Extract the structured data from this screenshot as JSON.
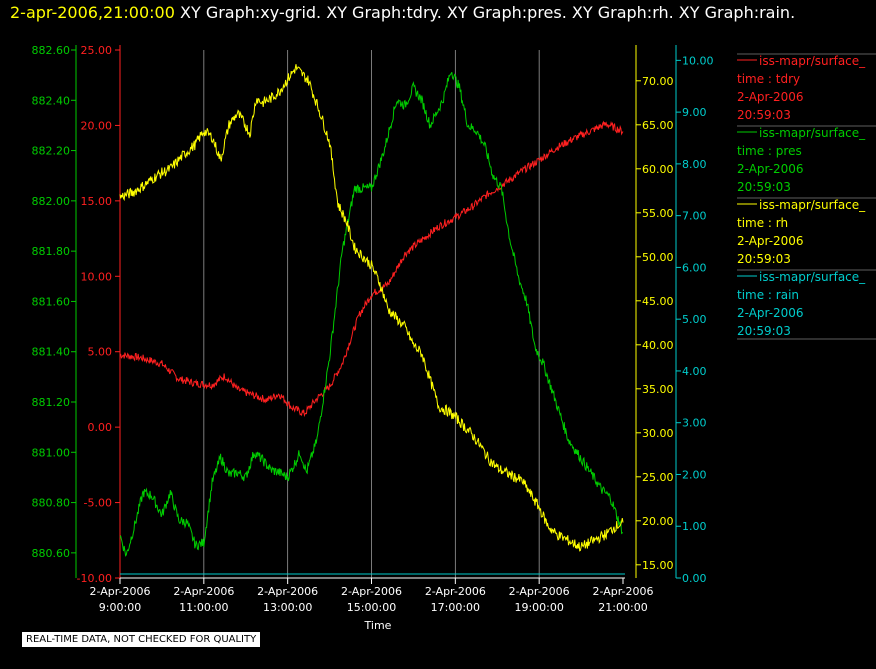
{
  "header": {
    "timestamp": "2-apr-2006,21:00:00",
    "graphs": "XY Graph:xy-grid.  XY Graph:tdry.  XY Graph:pres.  XY Graph:rh.  XY Graph:rain."
  },
  "notice": "REAL-TIME DATA, NOT CHECKED FOR QUALITY",
  "chart_data": {
    "type": "line",
    "xlabel": "Time",
    "x_ticks": [
      {
        "time": "09:00",
        "line1": "2-Apr-2006",
        "line2": "9:00:00"
      },
      {
        "time": "11:00",
        "line1": "2-Apr-2006",
        "line2": "11:00:00"
      },
      {
        "time": "13:00",
        "line1": "2-Apr-2006",
        "line2": "13:00:00"
      },
      {
        "time": "15:00",
        "line1": "2-Apr-2006",
        "line2": "15:00:00"
      },
      {
        "time": "17:00",
        "line1": "2-Apr-2006",
        "line2": "17:00:00"
      },
      {
        "time": "19:00",
        "line1": "2-Apr-2006",
        "line2": "19:00:00"
      },
      {
        "time": "21:00",
        "line1": "2-Apr-2006",
        "line2": "21:00:00"
      }
    ],
    "grid": "vertical",
    "legend_position": "right",
    "axes": [
      {
        "id": "pres",
        "color": "#00cc00",
        "side": "left-outer",
        "range": [
          880.5,
          882.6
        ],
        "ticks": [
          "880.60",
          "880.80",
          "881.00",
          "881.20",
          "881.40",
          "881.60",
          "881.80",
          "882.00",
          "882.20",
          "882.40",
          "882.60"
        ]
      },
      {
        "id": "tdry",
        "color": "#ff2020",
        "side": "left-inner",
        "range": [
          -10,
          25
        ],
        "ticks": [
          "-10.00",
          "-5.00",
          "0.00",
          "5.00",
          "10.00",
          "15.00",
          "20.00",
          "25.00"
        ]
      },
      {
        "id": "rh",
        "color": "#ffff00",
        "side": "right-inner",
        "range": [
          13.5,
          73.5
        ],
        "ticks": [
          "15.00",
          "20.00",
          "25.00",
          "30.00",
          "35.00",
          "40.00",
          "45.00",
          "50.00",
          "55.00",
          "60.00",
          "65.00",
          "70.00"
        ]
      },
      {
        "id": "rain",
        "color": "#00cccc",
        "side": "right-outer",
        "range": [
          0,
          10.2
        ],
        "ticks": [
          "0.00",
          "1.00",
          "2.00",
          "3.00",
          "4.00",
          "5.00",
          "6.00",
          "7.00",
          "8.00",
          "9.00",
          "10.00"
        ]
      }
    ],
    "legend": [
      {
        "name": "iss-mapr/surface_",
        "var": "time : tdry",
        "date": "2-Apr-2006",
        "time": "20:59:03",
        "color": "#ff2020"
      },
      {
        "name": "iss-mapr/surface_",
        "var": "time : pres",
        "date": "2-Apr-2006",
        "time": "20:59:03",
        "color": "#00cc00"
      },
      {
        "name": "iss-mapr/surface_",
        "var": "time : rh",
        "date": "2-Apr-2006",
        "time": "20:59:03",
        "color": "#ffff00"
      },
      {
        "name": "iss-mapr/surface_",
        "var": "time : rain",
        "date": "2-Apr-2006",
        "time": "20:59:03",
        "color": "#00cccc"
      }
    ],
    "series": [
      {
        "axis": "tdry",
        "points": [
          [
            9.0,
            4.8
          ],
          [
            9.5,
            4.6
          ],
          [
            10.0,
            4.2
          ],
          [
            10.4,
            3.2
          ],
          [
            10.8,
            2.9
          ],
          [
            11.2,
            2.8
          ],
          [
            11.5,
            3.4
          ],
          [
            11.8,
            2.5
          ],
          [
            12.1,
            2.2
          ],
          [
            12.5,
            1.8
          ],
          [
            12.8,
            2.2
          ],
          [
            13.1,
            1.3
          ],
          [
            13.4,
            0.9
          ],
          [
            13.7,
            1.9
          ],
          [
            14.0,
            2.7
          ],
          [
            14.3,
            4.2
          ],
          [
            14.7,
            7.4
          ],
          [
            15.0,
            8.8
          ],
          [
            15.4,
            9.5
          ],
          [
            15.8,
            11.5
          ],
          [
            16.2,
            12.4
          ],
          [
            16.6,
            13.3
          ],
          [
            17.0,
            13.9
          ],
          [
            17.4,
            14.6
          ],
          [
            17.8,
            15.5
          ],
          [
            18.2,
            16.2
          ],
          [
            18.6,
            17.0
          ],
          [
            19.0,
            17.7
          ],
          [
            19.4,
            18.5
          ],
          [
            19.8,
            19.1
          ],
          [
            20.2,
            19.6
          ],
          [
            20.6,
            20.1
          ],
          [
            21.0,
            19.6
          ]
        ]
      },
      {
        "axis": "pres",
        "points": [
          [
            9.0,
            880.67
          ],
          [
            9.15,
            880.59
          ],
          [
            9.35,
            880.71
          ],
          [
            9.55,
            880.84
          ],
          [
            9.75,
            880.83
          ],
          [
            10.0,
            880.75
          ],
          [
            10.2,
            880.84
          ],
          [
            10.4,
            880.73
          ],
          [
            10.6,
            880.72
          ],
          [
            10.8,
            880.63
          ],
          [
            11.0,
            880.64
          ],
          [
            11.2,
            880.88
          ],
          [
            11.4,
            880.98
          ],
          [
            11.6,
            880.91
          ],
          [
            11.8,
            880.92
          ],
          [
            12.0,
            880.9
          ],
          [
            12.2,
            881.0
          ],
          [
            12.4,
            880.97
          ],
          [
            12.6,
            880.93
          ],
          [
            12.8,
            880.92
          ],
          [
            13.0,
            880.9
          ],
          [
            13.3,
            881.0
          ],
          [
            13.45,
            880.92
          ],
          [
            13.7,
            881.05
          ],
          [
            14.0,
            881.38
          ],
          [
            14.3,
            881.8
          ],
          [
            14.6,
            882.05
          ],
          [
            14.8,
            882.05
          ],
          [
            15.0,
            882.05
          ],
          [
            15.3,
            882.2
          ],
          [
            15.6,
            882.4
          ],
          [
            15.8,
            882.38
          ],
          [
            16.0,
            882.45
          ],
          [
            16.2,
            882.4
          ],
          [
            16.4,
            882.3
          ],
          [
            16.7,
            882.4
          ],
          [
            16.9,
            882.52
          ],
          [
            17.1,
            882.45
          ],
          [
            17.3,
            882.3
          ],
          [
            17.5,
            882.28
          ],
          [
            17.7,
            882.22
          ],
          [
            17.9,
            882.1
          ],
          [
            18.1,
            882.05
          ],
          [
            18.3,
            881.85
          ],
          [
            18.5,
            881.7
          ],
          [
            18.7,
            881.6
          ],
          [
            18.9,
            881.42
          ],
          [
            19.1,
            881.35
          ],
          [
            19.3,
            881.25
          ],
          [
            19.5,
            881.15
          ],
          [
            19.7,
            881.05
          ],
          [
            19.9,
            881.0
          ],
          [
            20.1,
            880.95
          ],
          [
            20.3,
            880.9
          ],
          [
            20.5,
            880.85
          ],
          [
            20.7,
            880.82
          ],
          [
            20.85,
            880.75
          ],
          [
            21.0,
            880.68
          ]
        ]
      },
      {
        "axis": "rh",
        "points": [
          [
            9.0,
            56.8
          ],
          [
            9.3,
            57.3
          ],
          [
            9.6,
            58.2
          ],
          [
            9.9,
            59.3
          ],
          [
            10.2,
            60.0
          ],
          [
            10.5,
            61.5
          ],
          [
            10.8,
            62.8
          ],
          [
            11.0,
            64.3
          ],
          [
            11.2,
            63.6
          ],
          [
            11.4,
            61.0
          ],
          [
            11.6,
            65.0
          ],
          [
            11.8,
            66.3
          ],
          [
            11.95,
            65.3
          ],
          [
            12.1,
            64.0
          ],
          [
            12.25,
            68.0
          ],
          [
            12.4,
            67.5
          ],
          [
            12.6,
            68.0
          ],
          [
            12.8,
            68.8
          ],
          [
            13.0,
            70.2
          ],
          [
            13.2,
            71.5
          ],
          [
            13.5,
            70.0
          ],
          [
            13.8,
            66.0
          ],
          [
            14.0,
            63.0
          ],
          [
            14.2,
            56.0
          ],
          [
            14.4,
            54.0
          ],
          [
            14.6,
            51.0
          ],
          [
            14.8,
            50.0
          ],
          [
            15.0,
            49.0
          ],
          [
            15.2,
            47.0
          ],
          [
            15.4,
            44.0
          ],
          [
            15.6,
            43.0
          ],
          [
            15.8,
            42.0
          ],
          [
            16.0,
            40.0
          ],
          [
            16.2,
            39.0
          ],
          [
            16.4,
            36.0
          ],
          [
            16.6,
            33.0
          ],
          [
            16.8,
            32.5
          ],
          [
            17.0,
            31.8
          ],
          [
            17.2,
            30.8
          ],
          [
            17.4,
            29.8
          ],
          [
            17.6,
            28.5
          ],
          [
            17.8,
            27.0
          ],
          [
            18.0,
            26.0
          ],
          [
            18.2,
            25.5
          ],
          [
            18.4,
            25.0
          ],
          [
            18.6,
            24.5
          ],
          [
            18.8,
            23.0
          ],
          [
            19.0,
            21.5
          ],
          [
            19.2,
            19.5
          ],
          [
            19.4,
            18.5
          ],
          [
            19.6,
            18.0
          ],
          [
            19.8,
            17.5
          ],
          [
            20.0,
            17.0
          ],
          [
            20.2,
            17.5
          ],
          [
            20.4,
            18.0
          ],
          [
            20.6,
            18.5
          ],
          [
            20.8,
            19.3
          ],
          [
            21.0,
            19.8
          ]
        ]
      },
      {
        "axis": "rain",
        "points": [
          [
            9.0,
            0.0
          ],
          [
            21.0,
            0.0
          ]
        ]
      }
    ]
  }
}
